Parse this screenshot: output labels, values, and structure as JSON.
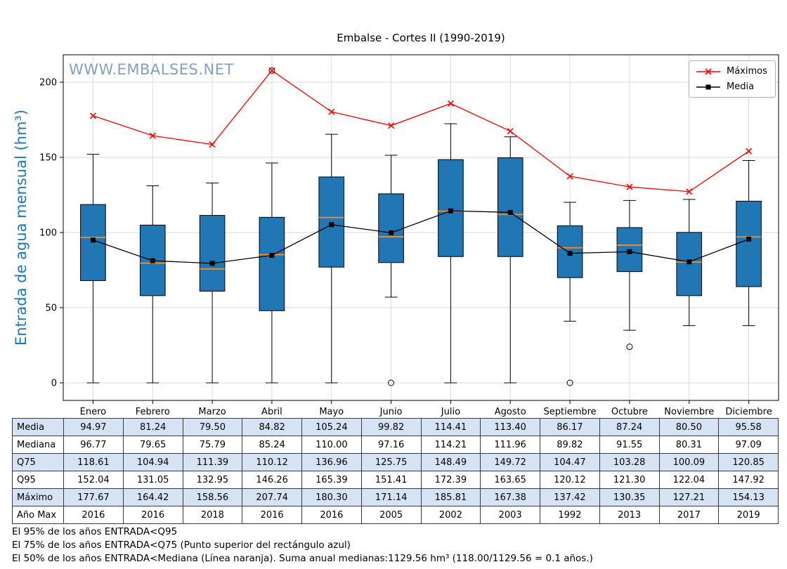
{
  "title": "Embalse - Cortes II (1990-2019)",
  "watermark": "WWW.EMBALSES.NET",
  "ylabel": "Entrada de agua mensual (hm³)",
  "legend": {
    "maximos": "Máximos",
    "media": "Media"
  },
  "chart_data": {
    "type": "boxplot",
    "title": "Embalse - Cortes II (1990-2019)",
    "xlabel": "",
    "ylabel": "Entrada de agua mensual (hm³)",
    "ylim": [
      -12,
      218
    ],
    "yticks": [
      0,
      50,
      100,
      150,
      200
    ],
    "grid": true,
    "legend_position": "top-right",
    "categories": [
      "Enero",
      "Febrero",
      "Marzo",
      "Abril",
      "Mayo",
      "Junio",
      "Julio",
      "Agosto",
      "Septiembre",
      "Octubre",
      "Noviembre",
      "Diciembre"
    ],
    "series": [
      {
        "name": "Máximos",
        "marker": "x",
        "color": "#ff0000",
        "values": [
          177.67,
          164.42,
          158.56,
          207.74,
          180.3,
          171.14,
          185.81,
          167.38,
          137.42,
          130.35,
          127.21,
          154.13
        ]
      },
      {
        "name": "Media",
        "marker": "square",
        "color": "#000000",
        "values": [
          94.97,
          81.24,
          79.5,
          84.82,
          105.24,
          99.82,
          114.41,
          113.4,
          86.17,
          87.24,
          80.5,
          95.58
        ]
      }
    ],
    "box": {
      "median": [
        96.77,
        79.65,
        75.79,
        85.24,
        110.0,
        97.16,
        114.21,
        111.96,
        89.82,
        91.55,
        80.31,
        97.09
      ],
      "q3": [
        118.61,
        104.94,
        111.39,
        110.12,
        136.96,
        125.75,
        148.49,
        149.72,
        104.47,
        103.28,
        100.09,
        120.85
      ],
      "q1": [
        68,
        58,
        61,
        48,
        77,
        80,
        84,
        84,
        70,
        74,
        58,
        64
      ],
      "whisker_high": [
        152.04,
        131.05,
        132.95,
        146.26,
        165.39,
        151.41,
        172.39,
        163.65,
        120.12,
        121.3,
        122.04,
        147.92
      ],
      "whisker_low": [
        0,
        0,
        0,
        0,
        0,
        57,
        0,
        0,
        41,
        35,
        38,
        38
      ],
      "outliers": [
        [],
        [],
        [],
        [
          207.74
        ],
        [],
        [
          0
        ],
        [],
        [],
        [
          0
        ],
        [
          24
        ],
        [],
        []
      ]
    },
    "colors": {
      "box_fill": "#2077b4",
      "median": "#ff8c1a",
      "max_line": "#ff0000",
      "mean_line": "#000000"
    }
  },
  "table": {
    "rows": [
      {
        "label": "Media",
        "values": [
          "94.97",
          "81.24",
          "79.50",
          "84.82",
          "105.24",
          "99.82",
          "114.41",
          "113.40",
          "86.17",
          "87.24",
          "80.50",
          "95.58"
        ]
      },
      {
        "label": "Mediana",
        "values": [
          "96.77",
          "79.65",
          "75.79",
          "85.24",
          "110.00",
          "97.16",
          "114.21",
          "111.96",
          "89.82",
          "91.55",
          "80.31",
          "97.09"
        ]
      },
      {
        "label": "Q75",
        "values": [
          "118.61",
          "104.94",
          "111.39",
          "110.12",
          "136.96",
          "125.75",
          "148.49",
          "149.72",
          "104.47",
          "103.28",
          "100.09",
          "120.85"
        ]
      },
      {
        "label": "Q95",
        "values": [
          "152.04",
          "131.05",
          "132.95",
          "146.26",
          "165.39",
          "151.41",
          "172.39",
          "163.65",
          "120.12",
          "121.30",
          "122.04",
          "147.92"
        ]
      },
      {
        "label": "Máximo",
        "values": [
          "177.67",
          "164.42",
          "158.56",
          "207.74",
          "180.30",
          "171.14",
          "185.81",
          "167.38",
          "137.42",
          "130.35",
          "127.21",
          "154.13"
        ]
      },
      {
        "label": "Año Max",
        "values": [
          "2016",
          "2016",
          "2018",
          "2016",
          "2016",
          "2005",
          "2002",
          "2003",
          "1992",
          "2013",
          "2017",
          "2019"
        ]
      }
    ]
  },
  "footnotes": [
    "El 95% de los años ENTRADA<Q95",
    "El 75% de los años ENTRADA<Q75 (Punto superior del rectángulo azul)",
    "El 50% de los años ENTRADA<Mediana (Línea naranja). Suma anual medianas:1129.56 hm³ (118.00/1129.56 = 0.1 años.)"
  ]
}
